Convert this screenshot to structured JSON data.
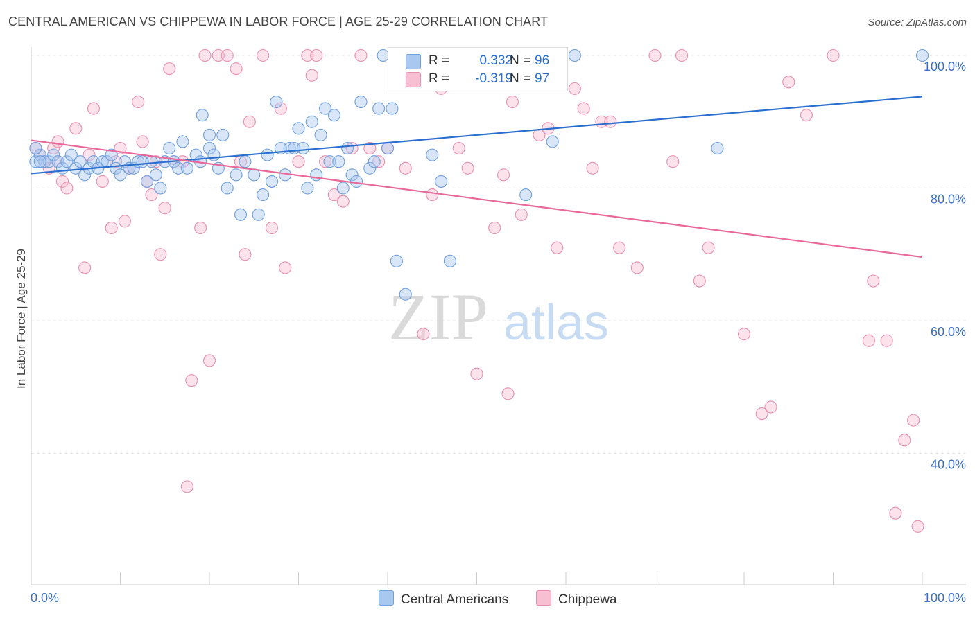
{
  "header": {
    "title": "CENTRAL AMERICAN VS CHIPPEWA IN LABOR FORCE | AGE 25-29 CORRELATION CHART",
    "source": "Source: ZipAtlas.com"
  },
  "legend": {
    "r_label": "R =",
    "n_label": "N =",
    "series": [
      {
        "name": "Central Americans",
        "r": "0.332",
        "n": "96"
      },
      {
        "name": "Chippewa",
        "r": "-0.319",
        "n": "97"
      }
    ]
  },
  "watermark": {
    "zip": "ZIP",
    "atlas": "atlas"
  },
  "colors": {
    "blue_fill": "#a9c8f0",
    "blue_stroke": "#6f9fdc",
    "blue_line": "#2a6fd0",
    "pink_fill": "#f8bfd3",
    "pink_stroke": "#ea8fb0",
    "pink_line": "#e8689a",
    "axis_text": "#3a6fc4"
  },
  "chart_data": {
    "type": "scatter",
    "title": "CENTRAL AMERICAN VS CHIPPEWA IN LABOR FORCE | AGE 25-29 CORRELATION CHART",
    "xlabel": "",
    "ylabel": "In Labor Force | Age 25-29",
    "x_tick_labels": [
      "0.0%",
      "100.0%"
    ],
    "y_tick_labels": [
      "40.0%",
      "60.0%",
      "80.0%",
      "100.0%"
    ],
    "xlim": [
      0,
      100
    ],
    "ylim": [
      20,
      101
    ],
    "grid": true,
    "legend_position": "top-center",
    "series": [
      {
        "name": "Central Americans",
        "r": 0.332,
        "n": 96,
        "trend": [
          [
            0,
            82.2
          ],
          [
            100,
            93.8
          ]
        ],
        "points": [
          [
            0.5,
            84
          ],
          [
            1,
            85
          ],
          [
            1.5,
            84
          ],
          [
            2,
            84
          ],
          [
            2.5,
            85
          ],
          [
            3,
            84
          ],
          [
            3.5,
            83
          ],
          [
            4,
            84
          ],
          [
            4.5,
            85
          ],
          [
            5,
            83
          ],
          [
            5.5,
            84
          ],
          [
            6,
            82
          ],
          [
            6.5,
            83
          ],
          [
            7,
            84
          ],
          [
            7.5,
            83
          ],
          [
            8,
            84
          ],
          [
            8.5,
            84
          ],
          [
            9,
            85
          ],
          [
            9.5,
            83
          ],
          [
            10,
            82
          ],
          [
            10.5,
            84
          ],
          [
            11,
            83
          ],
          [
            11.5,
            83
          ],
          [
            12,
            84
          ],
          [
            12.5,
            84
          ],
          [
            13,
            81
          ],
          [
            13.5,
            84
          ],
          [
            14,
            82
          ],
          [
            14.5,
            80
          ],
          [
            15,
            84
          ],
          [
            15.5,
            86
          ],
          [
            16,
            84
          ],
          [
            16.5,
            83
          ],
          [
            17,
            87
          ],
          [
            17.5,
            83
          ],
          [
            18.5,
            85
          ],
          [
            19,
            84
          ],
          [
            19.2,
            91
          ],
          [
            20,
            86
          ],
          [
            20,
            88
          ],
          [
            20.5,
            85
          ],
          [
            21,
            83
          ],
          [
            21.5,
            88
          ],
          [
            22,
            80
          ],
          [
            23,
            82
          ],
          [
            23.5,
            76
          ],
          [
            24,
            84
          ],
          [
            25,
            82
          ],
          [
            25.5,
            76
          ],
          [
            26,
            79
          ],
          [
            26.5,
            85
          ],
          [
            27,
            81
          ],
          [
            27.5,
            93
          ],
          [
            28,
            86
          ],
          [
            28.5,
            82
          ],
          [
            29,
            86
          ],
          [
            29.5,
            86
          ],
          [
            30,
            89
          ],
          [
            30.5,
            86
          ],
          [
            31,
            80
          ],
          [
            31.5,
            90
          ],
          [
            32,
            82
          ],
          [
            32.5,
            88
          ],
          [
            33,
            92
          ],
          [
            33.5,
            84
          ],
          [
            34,
            91
          ],
          [
            34.5,
            84
          ],
          [
            35,
            80
          ],
          [
            35.5,
            86
          ],
          [
            36,
            82
          ],
          [
            36.5,
            81
          ],
          [
            37,
            93
          ],
          [
            38,
            83
          ],
          [
            38.5,
            84
          ],
          [
            39,
            92
          ],
          [
            40,
            86
          ],
          [
            40.5,
            92
          ],
          [
            41,
            69
          ],
          [
            42,
            64
          ],
          [
            45,
            85
          ],
          [
            46,
            81
          ],
          [
            47,
            69
          ],
          [
            50,
            100
          ],
          [
            55.5,
            79
          ],
          [
            58.5,
            87
          ],
          [
            61,
            100
          ],
          [
            77,
            86
          ],
          [
            100,
            100
          ],
          [
            0.5,
            86
          ],
          [
            1,
            84
          ],
          [
            39.5,
            100
          ],
          [
            42.5,
            100
          ],
          [
            44,
            100
          ],
          [
            48,
            100
          ],
          [
            51,
            100
          ],
          [
            52.5,
            100
          ]
        ]
      },
      {
        "name": "Chippewa",
        "r": -0.319,
        "n": 97,
        "trend": [
          [
            0,
            87.2
          ],
          [
            100,
            69.6
          ]
        ],
        "points": [
          [
            0.5,
            86
          ],
          [
            1,
            85
          ],
          [
            1.5,
            84
          ],
          [
            2,
            83
          ],
          [
            2.5,
            86
          ],
          [
            3,
            87
          ],
          [
            3.5,
            81
          ],
          [
            4,
            80
          ],
          [
            5,
            89
          ],
          [
            6,
            68
          ],
          [
            6.5,
            85
          ],
          [
            7,
            92
          ],
          [
            8,
            81
          ],
          [
            9,
            74
          ],
          [
            9.5,
            84
          ],
          [
            10,
            86
          ],
          [
            10.5,
            75
          ],
          [
            11,
            83
          ],
          [
            12,
            93
          ],
          [
            12.5,
            87
          ],
          [
            13,
            81
          ],
          [
            13.5,
            79
          ],
          [
            14,
            84
          ],
          [
            14.5,
            70
          ],
          [
            15,
            77
          ],
          [
            15.5,
            98
          ],
          [
            16,
            84
          ],
          [
            17,
            84
          ],
          [
            17.5,
            35
          ],
          [
            18,
            51
          ],
          [
            19,
            74
          ],
          [
            19.5,
            100
          ],
          [
            20,
            54
          ],
          [
            21,
            100
          ],
          [
            22,
            100
          ],
          [
            23,
            98
          ],
          [
            23.5,
            84
          ],
          [
            24,
            70
          ],
          [
            24.5,
            90
          ],
          [
            26,
            100
          ],
          [
            27,
            74
          ],
          [
            28,
            92
          ],
          [
            28.5,
            68
          ],
          [
            30,
            84
          ],
          [
            31,
            100
          ],
          [
            31.5,
            97
          ],
          [
            32,
            100
          ],
          [
            33,
            84
          ],
          [
            34,
            79
          ],
          [
            35,
            78
          ],
          [
            36,
            86
          ],
          [
            37,
            100
          ],
          [
            38,
            86
          ],
          [
            39,
            84
          ],
          [
            40,
            86
          ],
          [
            41,
            100
          ],
          [
            42,
            83
          ],
          [
            44,
            58
          ],
          [
            45,
            79
          ],
          [
            46,
            95
          ],
          [
            48,
            86
          ],
          [
            49,
            83
          ],
          [
            50,
            52
          ],
          [
            52,
            74
          ],
          [
            53,
            82
          ],
          [
            53.5,
            49
          ],
          [
            54,
            93
          ],
          [
            55,
            76
          ],
          [
            57,
            88
          ],
          [
            58,
            89
          ],
          [
            59,
            71
          ],
          [
            61,
            95
          ],
          [
            62,
            92
          ],
          [
            63,
            83
          ],
          [
            64,
            90
          ],
          [
            65,
            90
          ],
          [
            66,
            71
          ],
          [
            68,
            68
          ],
          [
            70,
            100
          ],
          [
            72,
            84
          ],
          [
            73,
            100
          ],
          [
            75,
            66
          ],
          [
            76,
            71
          ],
          [
            80,
            58
          ],
          [
            82,
            46
          ],
          [
            83,
            47
          ],
          [
            85,
            96
          ],
          [
            87,
            91
          ],
          [
            90,
            100
          ],
          [
            94,
            57
          ],
          [
            94.5,
            66
          ],
          [
            96,
            57
          ],
          [
            97,
            31
          ],
          [
            98,
            42
          ],
          [
            99,
            45
          ],
          [
            99.5,
            29
          ],
          [
            3,
            84
          ]
        ]
      }
    ]
  }
}
